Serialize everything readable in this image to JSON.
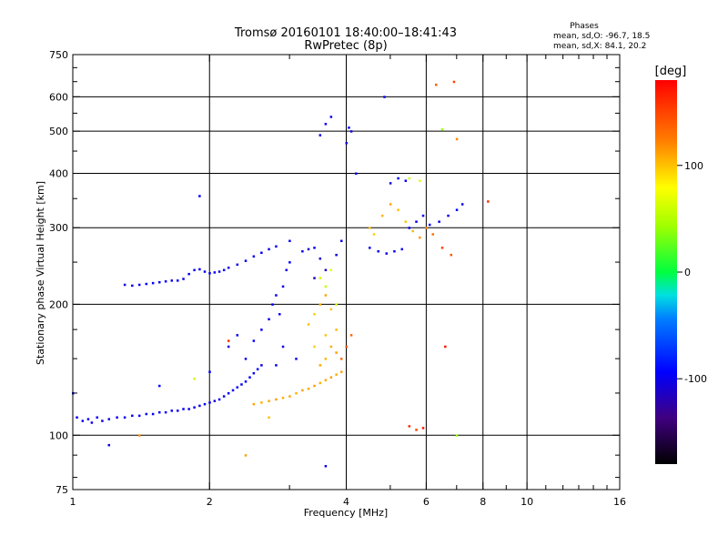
{
  "chart_data": {
    "type": "scatter",
    "title": "Tromsø 20160101 18:40:00–18:41:43",
    "subtitle": "RwPretec (8p)",
    "xlabel": "Frequency [MHz]",
    "ylabel": "Stationary phase Virtual Height [km]",
    "x_scale": "log",
    "y_scale": "log",
    "xlim": [
      1,
      16
    ],
    "ylim": [
      75,
      750
    ],
    "x_ticks": [
      1,
      2,
      4,
      6,
      8,
      10,
      16
    ],
    "x_tick_labels": [
      "1",
      "2",
      "4",
      "6",
      "8",
      "10",
      "16"
    ],
    "y_ticks": [
      75,
      100,
      200,
      300,
      400,
      500,
      600,
      750
    ],
    "y_tick_labels": [
      "75",
      "100",
      "200",
      "300",
      "400",
      "500",
      "600",
      "750"
    ],
    "grid": true,
    "phases": {
      "heading": "Phases",
      "line1": "mean, sd,O: -96.7, 18.5",
      "line2": "mean, sd,X:  84.1, 20.2"
    },
    "colorbar": {
      "label": "[deg]",
      "range": [
        -180,
        180
      ],
      "ticks": [
        -100,
        0,
        100
      ],
      "tick_labels": [
        "-100",
        "0",
        "100"
      ]
    },
    "series": [
      {
        "name": "O",
        "points": [
          [
            1.02,
            110,
            -95
          ],
          [
            1.05,
            108,
            -100
          ],
          [
            1.08,
            109,
            -98
          ],
          [
            1.1,
            107,
            -102
          ],
          [
            1.13,
            110,
            -96
          ],
          [
            1.16,
            108,
            -100
          ],
          [
            1.2,
            109,
            -97
          ],
          [
            1.25,
            110,
            -99
          ],
          [
            1.3,
            110,
            -101
          ],
          [
            1.35,
            111,
            -96
          ],
          [
            1.4,
            111,
            -98
          ],
          [
            1.45,
            112,
            -100
          ],
          [
            1.5,
            112,
            -97
          ],
          [
            1.55,
            113,
            -99
          ],
          [
            1.6,
            113,
            -95
          ],
          [
            1.65,
            114,
            -98
          ],
          [
            1.7,
            114,
            -100
          ],
          [
            1.75,
            115,
            -96
          ],
          [
            1.8,
            115,
            -99
          ],
          [
            1.85,
            116,
            -97
          ],
          [
            1.9,
            117,
            -101
          ],
          [
            1.95,
            118,
            -95
          ],
          [
            2.0,
            119,
            -98
          ],
          [
            2.05,
            120,
            -100
          ],
          [
            2.1,
            121,
            -96
          ],
          [
            2.15,
            123,
            -99
          ],
          [
            2.2,
            125,
            -97
          ],
          [
            2.25,
            127,
            -102
          ],
          [
            2.3,
            129,
            -95
          ],
          [
            2.35,
            131,
            -99
          ],
          [
            2.4,
            133,
            -96
          ],
          [
            2.45,
            136,
            -100
          ],
          [
            2.5,
            139,
            -98
          ],
          [
            2.55,
            142,
            -95
          ],
          [
            2.6,
            145,
            -101
          ],
          [
            1.3,
            222,
            -100
          ],
          [
            1.35,
            221,
            -97
          ],
          [
            1.4,
            222,
            -99
          ],
          [
            1.45,
            223,
            -95
          ],
          [
            1.5,
            224,
            -98
          ],
          [
            1.55,
            225,
            -102
          ],
          [
            1.6,
            226,
            -96
          ],
          [
            1.65,
            227,
            -99
          ],
          [
            1.7,
            227,
            -97
          ],
          [
            1.75,
            229,
            -100
          ],
          [
            1.8,
            235,
            -95
          ],
          [
            1.85,
            240,
            -98
          ],
          [
            1.9,
            241,
            -101
          ],
          [
            1.95,
            238,
            -96
          ],
          [
            2.0,
            236,
            -99
          ],
          [
            2.05,
            237,
            -97
          ],
          [
            2.1,
            238,
            -100
          ],
          [
            2.15,
            240,
            -95
          ],
          [
            2.2,
            243,
            -98
          ],
          [
            2.3,
            247,
            -100
          ],
          [
            2.4,
            252,
            -96
          ],
          [
            2.5,
            258,
            -99
          ],
          [
            2.6,
            263,
            -97
          ],
          [
            2.7,
            268,
            -101
          ],
          [
            2.8,
            272,
            -95
          ],
          [
            2.2,
            160,
            -100
          ],
          [
            2.3,
            170,
            -97
          ],
          [
            2.4,
            150,
            -99
          ],
          [
            2.5,
            165,
            -96
          ],
          [
            2.6,
            175,
            -102
          ],
          [
            2.7,
            185,
            -98
          ],
          [
            2.75,
            200,
            -95
          ],
          [
            2.8,
            210,
            -100
          ],
          [
            2.85,
            190,
            -97
          ],
          [
            2.9,
            220,
            -99
          ],
          [
            2.95,
            240,
            -101
          ],
          [
            3.0,
            250,
            -96
          ],
          [
            3.0,
            280,
            -98
          ],
          [
            2.9,
            160,
            -100
          ],
          [
            2.8,
            145,
            -95
          ],
          [
            3.2,
            265,
            -105
          ],
          [
            3.3,
            268,
            -110
          ],
          [
            3.4,
            270,
            -100
          ],
          [
            3.5,
            255,
            -108
          ],
          [
            3.6,
            240,
            -112
          ],
          [
            3.4,
            230,
            -115
          ],
          [
            3.5,
            490,
            -100
          ],
          [
            3.6,
            520,
            -98
          ],
          [
            3.7,
            540,
            -96
          ],
          [
            4.0,
            470,
            -99
          ],
          [
            4.05,
            510,
            -97
          ],
          [
            4.1,
            500,
            -100
          ],
          [
            4.2,
            400,
            -95
          ],
          [
            3.8,
            260,
            -102
          ],
          [
            3.9,
            280,
            -98
          ],
          [
            4.5,
            270,
            -100
          ],
          [
            4.7,
            265,
            -97
          ],
          [
            4.9,
            262,
            -99
          ],
          [
            5.1,
            265,
            -96
          ],
          [
            5.3,
            268,
            -101
          ],
          [
            5.5,
            300,
            -98
          ],
          [
            5.7,
            310,
            -95
          ],
          [
            5.9,
            320,
            -100
          ],
          [
            6.1,
            305,
            -97
          ],
          [
            6.4,
            310,
            -99
          ],
          [
            6.7,
            320,
            -102
          ],
          [
            7.0,
            330,
            -96
          ],
          [
            7.2,
            340,
            -98
          ],
          [
            5.0,
            380,
            -100
          ],
          [
            5.2,
            390,
            -95
          ],
          [
            5.4,
            385,
            -97
          ],
          [
            1.2,
            95,
            -100
          ],
          [
            1.55,
            130,
            -98
          ],
          [
            1.9,
            355,
            -96
          ],
          [
            3.6,
            85,
            -100
          ],
          [
            4.85,
            600,
            -99
          ],
          [
            1.0,
            125,
            -97
          ],
          [
            2.0,
            140,
            -95
          ],
          [
            3.1,
            150,
            -100
          ]
        ]
      },
      {
        "name": "X",
        "points": [
          [
            2.5,
            118,
            110
          ],
          [
            2.6,
            119,
            105
          ],
          [
            2.7,
            120,
            108
          ],
          [
            2.8,
            121,
            112
          ],
          [
            2.9,
            122,
            106
          ],
          [
            3.0,
            123,
            109
          ],
          [
            3.1,
            125,
            104
          ],
          [
            3.2,
            127,
            110
          ],
          [
            3.3,
            128,
            107
          ],
          [
            3.4,
            130,
            112
          ],
          [
            3.5,
            132,
            105
          ],
          [
            3.6,
            134,
            108
          ],
          [
            3.7,
            136,
            111
          ],
          [
            3.8,
            138,
            106
          ],
          [
            3.9,
            140,
            109
          ],
          [
            3.3,
            180,
            100
          ],
          [
            3.4,
            190,
            95
          ],
          [
            3.5,
            200,
            105
          ],
          [
            3.6,
            210,
            110
          ],
          [
            3.7,
            195,
            100
          ],
          [
            3.6,
            170,
            98
          ],
          [
            3.7,
            160,
            106
          ],
          [
            3.8,
            175,
            102
          ],
          [
            3.6,
            150,
            104
          ],
          [
            3.5,
            145,
            108
          ],
          [
            3.4,
            160,
            95
          ],
          [
            3.8,
            155,
            112
          ],
          [
            3.5,
            230,
            60
          ],
          [
            3.6,
            220,
            55
          ],
          [
            3.7,
            240,
            65
          ],
          [
            3.8,
            200,
            60
          ],
          [
            3.9,
            150,
            130
          ],
          [
            4.0,
            160,
            140
          ],
          [
            4.1,
            170,
            135
          ],
          [
            4.5,
            300,
            100
          ],
          [
            4.6,
            290,
            95
          ],
          [
            4.8,
            320,
            105
          ],
          [
            5.0,
            340,
            110
          ],
          [
            5.2,
            330,
            100
          ],
          [
            5.4,
            310,
            98
          ],
          [
            5.6,
            295,
            102
          ],
          [
            5.8,
            285,
            115
          ],
          [
            6.0,
            300,
            120
          ],
          [
            5.5,
            390,
            60
          ],
          [
            5.8,
            385,
            70
          ],
          [
            6.2,
            290,
            130
          ],
          [
            6.5,
            270,
            150
          ],
          [
            6.8,
            260,
            140
          ],
          [
            6.3,
            640,
            140
          ],
          [
            6.9,
            650,
            150
          ],
          [
            7.0,
            480,
            120
          ],
          [
            6.5,
            505,
            40
          ],
          [
            7.0,
            100,
            40
          ],
          [
            5.5,
            105,
            160
          ],
          [
            5.7,
            103,
            150
          ],
          [
            5.9,
            104,
            170
          ],
          [
            6.6,
            160,
            170
          ],
          [
            8.2,
            345,
            160
          ],
          [
            2.4,
            90,
            110
          ],
          [
            1.4,
            100,
            115
          ],
          [
            2.7,
            110,
            100
          ],
          [
            2.2,
            165,
            160
          ],
          [
            1.85,
            135,
            60
          ]
        ]
      }
    ]
  }
}
